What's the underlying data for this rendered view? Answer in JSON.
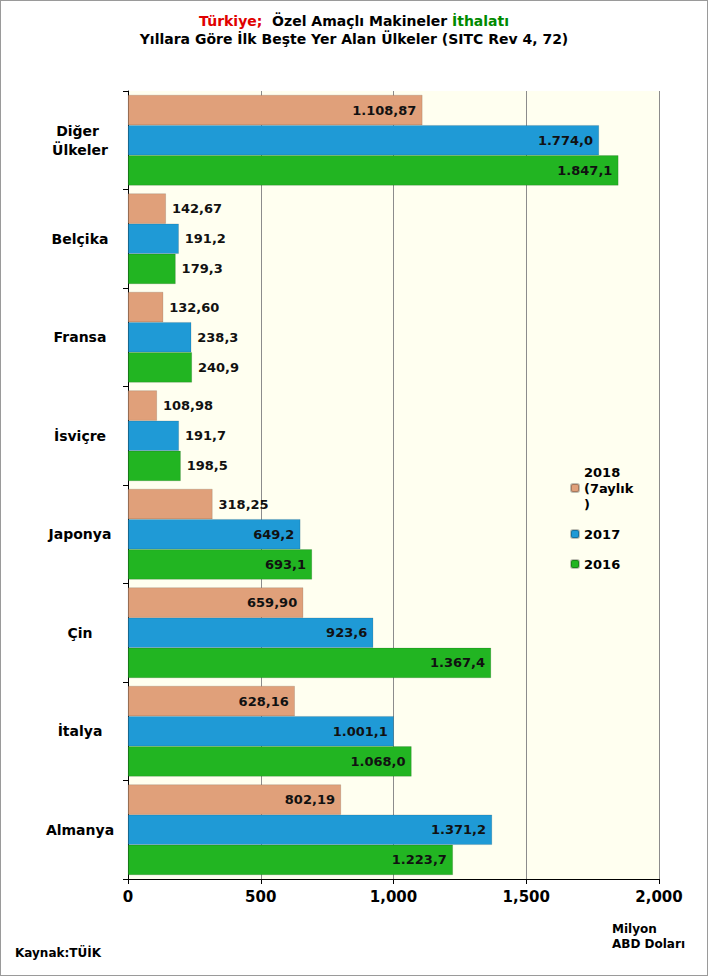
{
  "chart_data": {
    "type": "bar",
    "orientation": "horizontal",
    "title": "Türkiye;  Özel Amaçlı Makineler İthalatı",
    "subtitle": "Yıllara Göre İlk Beşte Yer Alan Ülkeler (SITC Rev 4, 72)",
    "x_label": "Milyon\nABD Doları",
    "source": "Kaynak:TÜİK",
    "categories": [
      "Diğer Ülkeler",
      "Belçika",
      "Fransa",
      "İsviçre",
      "Japonya",
      "Çin",
      "İtalya",
      "Almanya"
    ],
    "series": [
      {
        "name": "2018 (7aylık)",
        "color": "#e0a07a",
        "values": [
          1108.87,
          142.67,
          132.6,
          108.98,
          318.25,
          659.9,
          628.16,
          802.19
        ],
        "value_labels": [
          "1.108,87",
          "142,67",
          "132,60",
          "108,98",
          "318,25",
          "659,90",
          "628,16",
          "802,19"
        ]
      },
      {
        "name": "2017",
        "color": "#1f9ad6",
        "values": [
          1774.0,
          191.2,
          238.3,
          191.7,
          649.2,
          923.6,
          1001.1,
          1371.2
        ],
        "value_labels": [
          "1.774,0",
          "191,2",
          "238,3",
          "191,7",
          "649,2",
          "923,6",
          "1.001,1",
          "1.371,2"
        ]
      },
      {
        "name": "2016",
        "color": "#22b522",
        "values": [
          1847.1,
          179.3,
          240.9,
          198.5,
          693.1,
          1367.4,
          1068.0,
          1223.7
        ],
        "value_labels": [
          "1.847,1",
          "179,3",
          "240,9",
          "198,5",
          "693,1",
          "1.367,4",
          "1.068,0",
          "1.223,7"
        ]
      }
    ],
    "xlim": [
      0,
      2000
    ],
    "xticks": [
      0,
      500,
      1000,
      1500,
      2000
    ],
    "grid": true,
    "legend": "right",
    "data_labels": true
  }
}
